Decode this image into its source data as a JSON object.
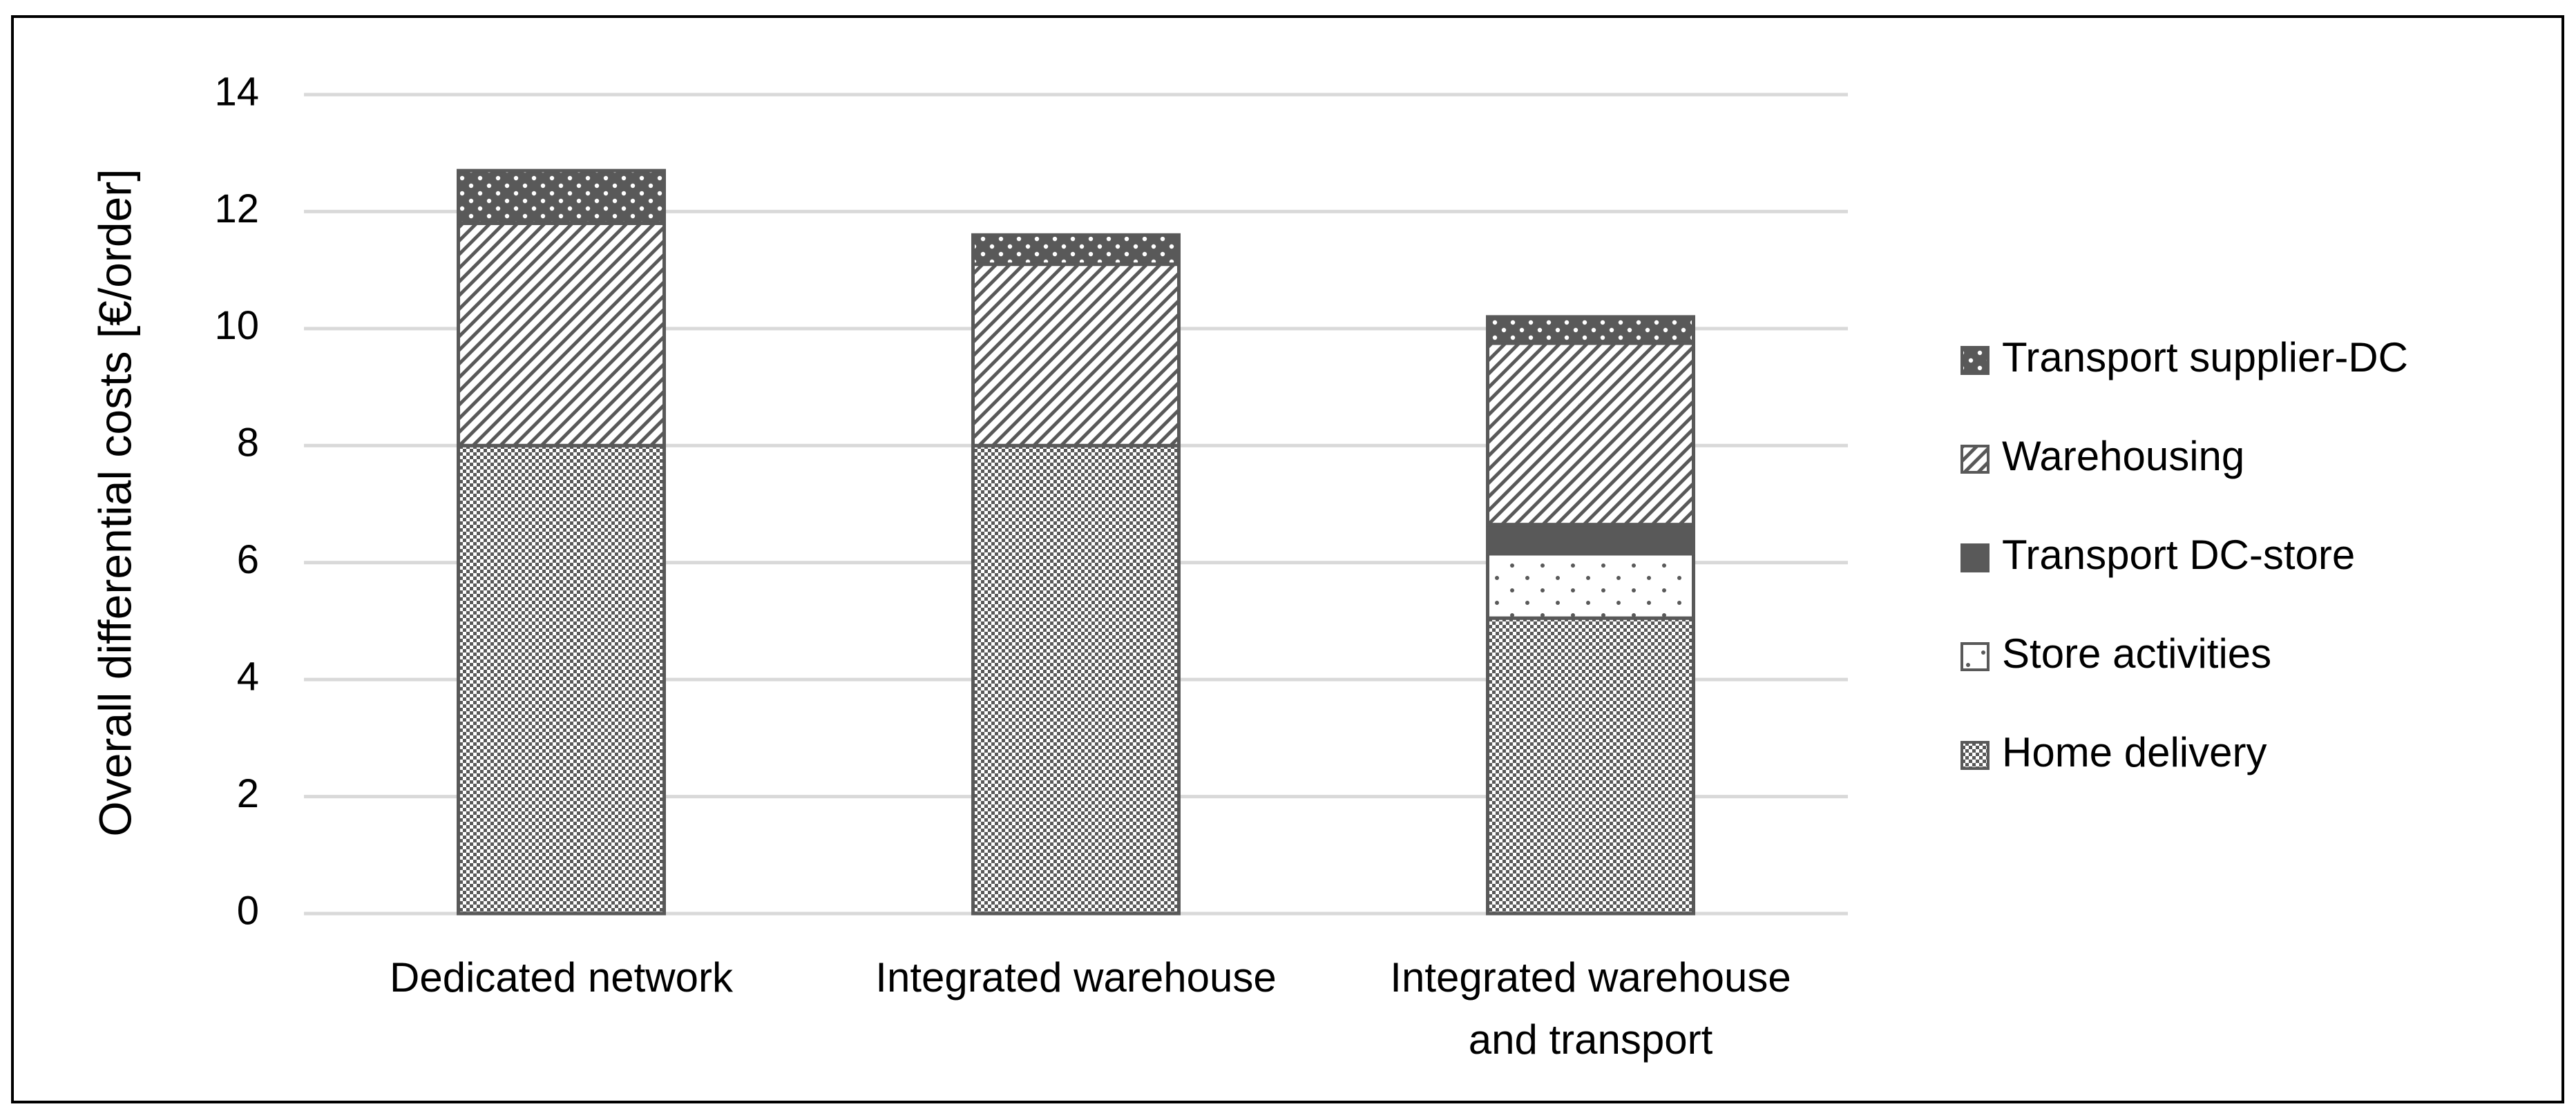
{
  "chart_data": {
    "type": "bar",
    "stacked": true,
    "title": "",
    "ylabel": "Overall differential costs [€/order]",
    "xlabel": "",
    "ylim": [
      0,
      14
    ],
    "yticks": [
      0,
      2,
      4,
      6,
      8,
      10,
      12,
      14
    ],
    "grid": true,
    "legend_position": "right",
    "categories": [
      [
        "Dedicated network"
      ],
      [
        "Integrated warehouse"
      ],
      [
        "Integrated warehouse",
        "and transport"
      ]
    ],
    "series": [
      {
        "name": "Home delivery",
        "pattern": "checker-fine",
        "values": [
          8.0,
          8.0,
          5.05
        ]
      },
      {
        "name": "Store activities",
        "pattern": "dots-sparse",
        "values": [
          0,
          0,
          1.1
        ]
      },
      {
        "name": "Transport DC-store",
        "pattern": "solid-dark",
        "values": [
          0,
          0,
          0.5
        ]
      },
      {
        "name": "Warehousing",
        "pattern": "diagonal-hatch",
        "values": [
          3.8,
          3.1,
          3.1
        ]
      },
      {
        "name": "Transport supplier-DC",
        "pattern": "dots-dense",
        "values": [
          0.9,
          0.5,
          0.45
        ]
      }
    ],
    "legend_order": [
      "Transport supplier-DC",
      "Warehousing",
      "Transport DC-store",
      "Store activities",
      "Home delivery"
    ],
    "colors": {
      "bar_stroke": "#595959",
      "dark_fill": "#595959",
      "gridline": "#d9d9d9",
      "frame": "#000000"
    }
  }
}
